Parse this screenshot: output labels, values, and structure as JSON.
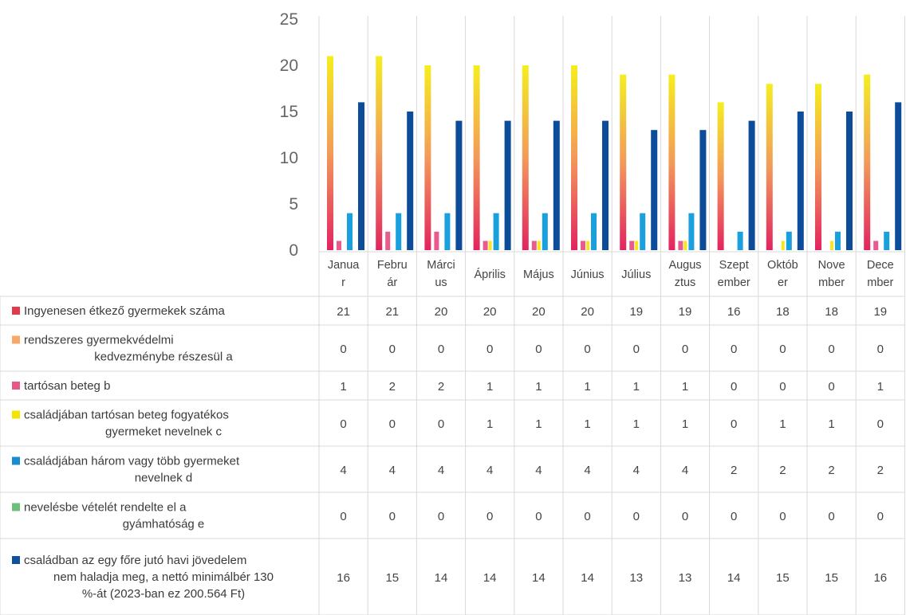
{
  "chart_data": {
    "type": "table",
    "chart_kind": "bar",
    "categories": [
      "Január",
      "Február",
      "Március",
      "Április",
      "Május",
      "Június",
      "Július",
      "Augusztus",
      "Szeptember",
      "Október",
      "November",
      "December"
    ],
    "category_labels": [
      [
        "Janua",
        "r"
      ],
      [
        "Febru",
        "ár"
      ],
      [
        "Márci",
        "us"
      ],
      [
        "Április"
      ],
      [
        "Május"
      ],
      [
        "Június"
      ],
      [
        "Július"
      ],
      [
        "Augus",
        "ztus"
      ],
      [
        "Szept",
        "ember"
      ],
      [
        "Októb",
        "er"
      ],
      [
        "Nove",
        "mber"
      ],
      [
        "Dece",
        "mber"
      ]
    ],
    "y_ticks": [
      "0",
      "5",
      "10",
      "15",
      "20",
      "25"
    ],
    "ylim": [
      0,
      25
    ],
    "grid": false,
    "legend_position": "table-left",
    "series": [
      {
        "name": "Ingyenesen étkező gyermekek száma",
        "label_lines": [
          "Ingyenesen étkező gyermekek száma"
        ],
        "values": [
          21,
          21,
          20,
          20,
          20,
          20,
          19,
          19,
          16,
          18,
          18,
          19
        ]
      },
      {
        "name": "rendszeres gyermekvédelmi kedvezménybe részesül a",
        "label_lines": [
          "rendszeres gyermekvédelmi",
          "kedvezménybe részesül   a"
        ],
        "values": [
          0,
          0,
          0,
          0,
          0,
          0,
          0,
          0,
          0,
          0,
          0,
          0
        ]
      },
      {
        "name": "tartósan beteg b",
        "label_lines": [
          "tartósan beteg   b"
        ],
        "values": [
          1,
          2,
          2,
          1,
          1,
          1,
          1,
          1,
          0,
          0,
          0,
          1
        ]
      },
      {
        "name": "családjában tartósan beteg fogyatékos gyermeket nevelnek c",
        "label_lines": [
          "családjában tartósan beteg fogyatékos",
          "gyermeket nevelnek   c"
        ],
        "values": [
          0,
          0,
          0,
          1,
          1,
          1,
          1,
          1,
          0,
          1,
          1,
          0
        ]
      },
      {
        "name": "családjában három vagy több gyermeket nevelnek d",
        "label_lines": [
          "családjában három vagy több gyermeket",
          "nevelnek   d"
        ],
        "values": [
          4,
          4,
          4,
          4,
          4,
          4,
          4,
          4,
          2,
          2,
          2,
          2
        ]
      },
      {
        "name": "nevelésbe vételét rendelte el a gyámhatóság e",
        "label_lines": [
          "nevelésbe vételét rendelte el a",
          "gyámhatóság   e"
        ],
        "values": [
          0,
          0,
          0,
          0,
          0,
          0,
          0,
          0,
          0,
          0,
          0,
          0
        ]
      },
      {
        "name": "családban az egy főre jutó havi jövedelem nem haladja meg, a nettó minimálbér 130 %-át (2023-ban ez 200.564 Ft)",
        "label_lines": [
          "családban az egy főre jutó havi jövedelem",
          "nem haladja meg, a nettó minimálbér 130",
          "%-át (2023-ban ez 200.564 Ft)"
        ],
        "values": [
          16,
          15,
          14,
          14,
          14,
          14,
          13,
          13,
          14,
          15,
          15,
          16
        ]
      }
    ]
  },
  "colors": {
    "gradient_top": "#f5ee1e",
    "gradient_mid": "#f39a5a",
    "gradient_bottom": "#e2245f",
    "legend": [
      "#e23a4a",
      "#f7a86a",
      "#e8578a",
      "#f2e600",
      "#1a8bd0",
      "#6dc07a",
      "#10509c"
    ],
    "bar_pink": "#ea5b8d",
    "bar_yellow": "#f6e71c",
    "bar_cyan": "#1aa0dc",
    "bar_navy": "#0d4c99",
    "grid_line": "#d9d9d9"
  }
}
